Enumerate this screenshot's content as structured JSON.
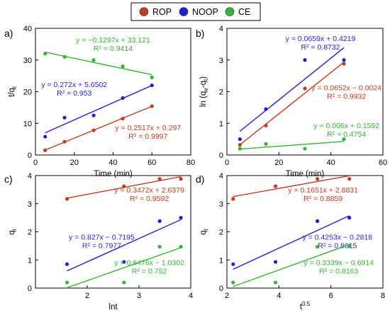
{
  "legend": [
    {
      "name": "ROP",
      "color": "#c23b22"
    },
    {
      "name": "NOOP",
      "color": "#1f1fd6"
    },
    {
      "name": "CE",
      "color": "#35b335"
    }
  ],
  "chart_data": [
    {
      "type": "scatter",
      "panel_label": "a)",
      "xlabel": "Time (min)",
      "ylabel": "t/q",
      "ylabel_sub": "t",
      "xlim": [
        0,
        80
      ],
      "ylim": [
        0,
        40
      ],
      "xticks": [
        0,
        20,
        40,
        60,
        80
      ],
      "yticks": [
        0,
        10,
        20,
        30,
        40
      ],
      "series": [
        {
          "name": "ROP",
          "color": "#c23b22",
          "x": [
            5,
            15,
            30,
            45,
            60
          ],
          "y": [
            1.5,
            4.2,
            7.8,
            11.5,
            15.4
          ],
          "fit": {
            "slope": 0.2517,
            "intercept": 0.297,
            "x_range": [
              5,
              60
            ]
          },
          "annotation": [
            "y = 0.2517x + 0.297",
            "R² = 0.9997"
          ],
          "ann_at": [
            58,
            7.8
          ]
        },
        {
          "name": "NOOP",
          "color": "#1f1fd6",
          "x": [
            5,
            15,
            30,
            45,
            60
          ],
          "y": [
            5.8,
            11.8,
            12.5,
            18.0,
            22.0
          ],
          "fit": {
            "slope": 0.272,
            "intercept": 5.6502,
            "x_range": [
              5,
              60
            ]
          },
          "annotation": [
            "y = 0.272x + 5.6502",
            "R² = 0.953"
          ],
          "ann_at": [
            20,
            21.5
          ]
        },
        {
          "name": "CE",
          "color": "#35b335",
          "x": [
            5,
            15,
            30,
            45,
            60
          ],
          "y": [
            32.0,
            31.0,
            30.0,
            28.0,
            24.5
          ],
          "fit": {
            "slope": -0.1297,
            "intercept": 33.121,
            "x_range": [
              5,
              60
            ]
          },
          "annotation": [
            "y = −0.1297x + 33.121",
            "R² = 0.9414"
          ],
          "ann_at": [
            40,
            35.5
          ]
        }
      ]
    },
    {
      "type": "scatter",
      "panel_label": "b)",
      "xlabel": "Time (min)",
      "ylabel": "ln (q",
      "ylabel_sub": "e",
      "ylabel_mid": "-q",
      "ylabel_sub2": "t",
      "ylabel_end": ")",
      "xlim": [
        0,
        60
      ],
      "ylim": [
        0,
        4
      ],
      "xticks": [
        0,
        20,
        40,
        60
      ],
      "yticks": [
        0,
        1,
        2,
        3,
        4
      ],
      "series": [
        {
          "name": "ROP",
          "color": "#c23b22",
          "x": [
            5,
            15,
            30,
            45
          ],
          "y": [
            0.32,
            0.93,
            2.1,
            2.88
          ],
          "fit": {
            "slope": 0.0652,
            "intercept": -0.0024,
            "x_range": [
              5,
              45
            ]
          },
          "annotation": [
            "y = 0.0652x − 0.0024",
            "R² = 0.9932"
          ],
          "ann_at": [
            46,
            2.05
          ]
        },
        {
          "name": "NOOP",
          "color": "#1f1fd6",
          "x": [
            5,
            15,
            30,
            45
          ],
          "y": [
            0.5,
            1.45,
            3.0,
            3.0
          ],
          "fit": {
            "slope": 0.0659,
            "intercept": 0.4219,
            "x_range": [
              5,
              45
            ]
          },
          "annotation": [
            "y = 0.0659x + 0.4219",
            "R² = 0.8732"
          ],
          "ann_at": [
            36,
            3.6
          ]
        },
        {
          "name": "CE",
          "color": "#35b335",
          "x": [
            5,
            15,
            30,
            45
          ],
          "y": [
            0.2,
            0.35,
            0.2,
            0.5
          ],
          "fit": {
            "slope": 0.006,
            "intercept": 0.1592,
            "x_range": [
              5,
              45
            ]
          },
          "annotation": [
            "y = 0.006x + 0.1592",
            "R² = 0.4754"
          ],
          "ann_at": [
            46,
            0.85
          ]
        }
      ]
    },
    {
      "type": "scatter",
      "panel_label": "c)",
      "xlabel": "lnt",
      "ylabel": "q",
      "ylabel_sub": "t",
      "xlim": [
        1,
        4
      ],
      "ylim": [
        0,
        4
      ],
      "xticks": [
        1,
        2,
        3,
        4
      ],
      "yticks": [
        0,
        1,
        2,
        3,
        4
      ],
      "xtick_labels": [
        "",
        "2",
        "3",
        "4"
      ],
      "series": [
        {
          "name": "ROP",
          "color": "#c23b22",
          "x": [
            1.61,
            2.71,
            3.4,
            3.81
          ],
          "y": [
            3.17,
            3.62,
            3.88,
            3.88
          ],
          "fit": {
            "slope": 0.3472,
            "intercept": 2.6379,
            "x_range": [
              1.61,
              3.81
            ]
          },
          "annotation": [
            "y = 0.3472x + 2.6379",
            "R² = 0.9592"
          ],
          "ann_at": [
            3.2,
            3.4
          ]
        },
        {
          "name": "NOOP",
          "color": "#1f1fd6",
          "x": [
            1.61,
            2.71,
            3.4,
            3.81
          ],
          "y": [
            0.85,
            0.93,
            2.38,
            2.5
          ],
          "fit": {
            "slope": 0.827,
            "intercept": -0.7195,
            "x_range": [
              1.61,
              3.81
            ]
          },
          "annotation": [
            "y = 0.827x − 0.7195",
            "R² = 0.7977"
          ],
          "ann_at": [
            2.28,
            1.72
          ]
        },
        {
          "name": "CE",
          "color": "#35b335",
          "x": [
            1.61,
            2.71,
            3.4,
            3.81
          ],
          "y": [
            0.2,
            0.2,
            1.47,
            1.47
          ],
          "fit": {
            "slope": 0.6476,
            "intercept": -1.0302,
            "x_range": [
              1.61,
              3.81
            ]
          },
          "annotation": [
            "y = 0.6476x − 1.0302",
            "R² = 0.752"
          ],
          "ann_at": [
            3.2,
            0.82
          ]
        }
      ]
    },
    {
      "type": "scatter",
      "panel_label": "d)",
      "xlabel": "t",
      "xlabel_sup": "0.5",
      "ylabel": "q",
      "ylabel_sub": "t",
      "xlim": [
        2,
        8
      ],
      "ylim": [
        0,
        4
      ],
      "xticks": [
        2,
        4,
        6,
        8
      ],
      "yticks": [
        0,
        1,
        2,
        3,
        4
      ],
      "series": [
        {
          "name": "ROP",
          "color": "#c23b22",
          "x": [
            2.24,
            3.87,
            5.48,
            6.71
          ],
          "y": [
            3.17,
            3.62,
            3.88,
            3.88
          ],
          "fit": {
            "slope": 0.1651,
            "intercept": 2.8831,
            "x_range": [
              2.24,
              6.71
            ]
          },
          "annotation": [
            "y = 0.1651x + 2.8831",
            "R² = 0.8859"
          ],
          "ann_at": [
            5.7,
            3.4
          ]
        },
        {
          "name": "NOOP",
          "color": "#1f1fd6",
          "x": [
            2.24,
            3.87,
            5.48,
            6.71
          ],
          "y": [
            0.85,
            0.93,
            2.38,
            2.5
          ],
          "fit": {
            "slope": 0.4253,
            "intercept": -0.2818,
            "x_range": [
              2.24,
              6.71
            ]
          },
          "annotation": [
            "y = 0.4253x − 0.2818",
            "R² = 0.8615"
          ],
          "ann_at": [
            6.25,
            1.72
          ]
        },
        {
          "name": "CE",
          "color": "#35b335",
          "x": [
            2.24,
            3.87,
            5.48,
            6.71
          ],
          "y": [
            0.2,
            0.2,
            1.47,
            1.5
          ],
          "fit": {
            "slope": 0.3339,
            "intercept": -0.6914,
            "x_range": [
              2.24,
              6.71
            ]
          },
          "annotation": [
            "y = 0.3339x − 0.6914",
            "R² = 0.8163"
          ],
          "ann_at": [
            6.3,
            0.82
          ]
        }
      ]
    }
  ]
}
